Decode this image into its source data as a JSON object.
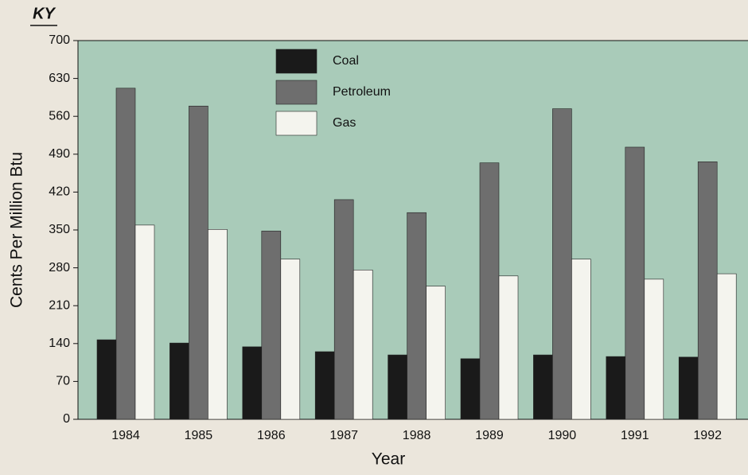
{
  "chart_data": {
    "type": "bar",
    "title": "KY",
    "x_label": "Year",
    "y_label": "Cents Per Million Btu",
    "categories": [
      "1984",
      "1985",
      "1986",
      "1987",
      "1988",
      "1989",
      "1990",
      "1991",
      "1992"
    ],
    "series": [
      {
        "name": "Coal",
        "color": "#1a1a1a",
        "values": [
          147,
          141,
          134,
          125,
          119,
          112,
          119,
          116,
          115
        ]
      },
      {
        "name": "Petroleum",
        "color": "#6e6e6e",
        "values": [
          612,
          579,
          348,
          406,
          382,
          474,
          574,
          503,
          476
        ]
      },
      {
        "name": "Gas",
        "color": "#f4f4ee",
        "values": [
          359,
          351,
          296,
          276,
          246,
          265,
          296,
          259,
          269
        ]
      }
    ],
    "ylim": [
      0,
      700
    ],
    "yticks": [
      0,
      70,
      140,
      210,
      280,
      350,
      420,
      490,
      560,
      630,
      700
    ]
  }
}
